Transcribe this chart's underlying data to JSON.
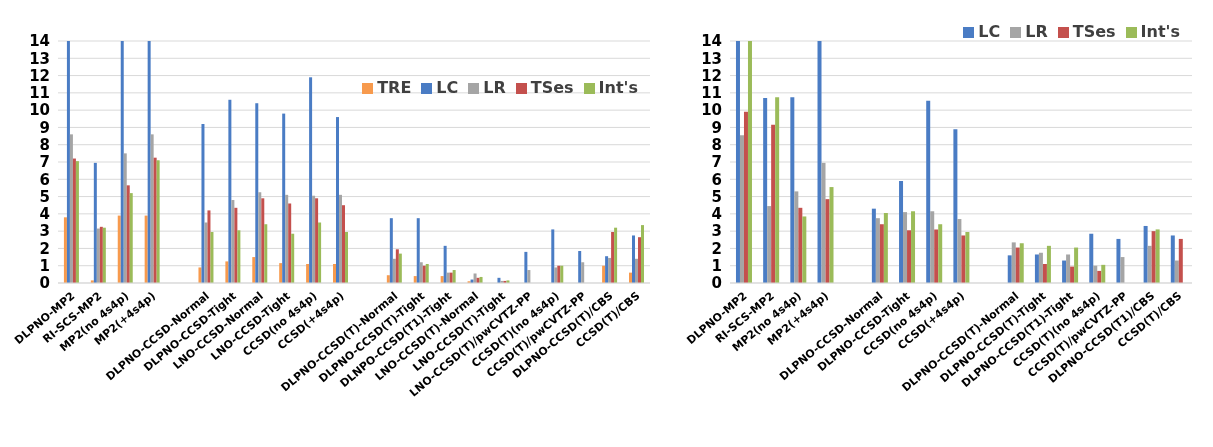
{
  "chart_data": [
    {
      "type": "bar",
      "categories": [
        "DLPNO-MP2",
        "RI-SCS-MP2",
        "MP2(no 4s4p)",
        "MP2(+4s4p)",
        null,
        "DLPNO-CCSD-Normal",
        "DLPNO-CCSD-Tight",
        "LNO-CCSD-Normal",
        "LNO-CCSD-Tight",
        "CCSD(no 4s4p)",
        "CCSD(+4s4p)",
        null,
        "DLPNO-CCSD(T)-Normal",
        "DLPNO-CCSD(T)-Tight",
        "DLNPO-CCSD(T1)-Tight",
        "LNO-CCSD(T)-Normal",
        "LNO-CCSD(T)-Tight",
        "LNO-CCSD(T)/pwCVTZ-PP",
        "CCSD(T)(no 4s4p)",
        "CCSD(T)/pwCVTZ-PP",
        "DLPNO-CCSD(T)/CBS",
        "CCSD(T)/CBS"
      ],
      "series": [
        {
          "name": "TRE",
          "color": "#f79a4d",
          "values": [
            3.8,
            0.15,
            3.9,
            3.9,
            null,
            0.9,
            1.25,
            1.5,
            1.15,
            1.1,
            1.1,
            null,
            0.45,
            0.4,
            0.4,
            0.1,
            null,
            null,
            null,
            null,
            1.0,
            0.6
          ]
        },
        {
          "name": "LC",
          "color": "#4a7cc4",
          "values": [
            14,
            6.95,
            14,
            14,
            null,
            9.2,
            10.6,
            10.4,
            9.8,
            11.9,
            9.6,
            null,
            3.75,
            3.75,
            2.15,
            0.2,
            0.3,
            1.8,
            3.1,
            1.85,
            1.55,
            2.75
          ]
        },
        {
          "name": "LR",
          "color": "#a5a5a5",
          "values": [
            8.6,
            3.15,
            7.5,
            8.6,
            null,
            3.5,
            4.8,
            5.25,
            5.1,
            5.05,
            5.1,
            null,
            1.4,
            1.2,
            0.6,
            0.55,
            0.12,
            0.75,
            0.9,
            1.2,
            1.45,
            1.4
          ]
        },
        {
          "name": "TSes",
          "color": "#c4504d",
          "values": [
            7.2,
            3.25,
            5.65,
            7.25,
            null,
            4.2,
            4.35,
            4.9,
            4.6,
            4.9,
            4.5,
            null,
            1.95,
            1.0,
            0.6,
            0.3,
            0.12,
            null,
            1.0,
            null,
            2.95,
            2.65
          ]
        },
        {
          "name": "Int's",
          "color": "#9bbb59",
          "values": [
            7.05,
            3.2,
            5.2,
            7.1,
            null,
            2.95,
            3.05,
            3.4,
            2.85,
            3.5,
            2.95,
            null,
            1.7,
            1.1,
            0.75,
            0.35,
            0.15,
            null,
            1.0,
            null,
            3.2,
            3.35
          ]
        }
      ],
      "ylim": [
        0,
        14
      ],
      "yticks": [
        0,
        1,
        2,
        3,
        4,
        5,
        6,
        7,
        8,
        9,
        10,
        11,
        12,
        13,
        14
      ],
      "grid": "y",
      "legend": "top right"
    },
    {
      "type": "bar",
      "categories": [
        "DLPNO-MP2",
        "RI-SCS-MP2",
        "MP2(no 4s4p)",
        "MP2(+4s4p)",
        null,
        "DLPNO-CCSD-Normal",
        "DLPNO-CCSD-Tight",
        "CCSD(no 4s4p)",
        "CCSD(+4s4p)",
        null,
        "DLPNO-CCSD(T)-Normal",
        "DLPNO-CCSD(T)-Tight",
        "DLPNO-CCSD(T1)-Tight",
        "CCSD(T)(no 4s4p)",
        "CCSD(T)/pwCVTZ-PP",
        "DLPNO-CCSD(T1)/CBS",
        "CCSD(T)/CBS"
      ],
      "series": [
        {
          "name": "LC",
          "color": "#4a7cc4",
          "values": [
            14,
            10.7,
            10.75,
            14,
            null,
            4.3,
            5.9,
            10.55,
            8.9,
            null,
            1.6,
            1.65,
            1.3,
            2.85,
            2.55,
            3.3,
            2.75
          ]
        },
        {
          "name": "LR",
          "color": "#a5a5a5",
          "values": [
            8.55,
            4.45,
            5.3,
            6.95,
            null,
            3.75,
            4.1,
            4.15,
            3.7,
            null,
            2.35,
            1.75,
            1.65,
            1.0,
            1.5,
            2.15,
            1.3
          ]
        },
        {
          "name": "TSes",
          "color": "#c4504d",
          "values": [
            9.9,
            9.15,
            4.35,
            4.85,
            null,
            3.4,
            3.05,
            3.1,
            2.75,
            null,
            2.05,
            1.1,
            0.95,
            0.7,
            null,
            3.0,
            2.55
          ]
        },
        {
          "name": "Int's",
          "color": "#9bbb59",
          "values": [
            14,
            10.75,
            3.85,
            5.55,
            null,
            4.05,
            4.15,
            3.4,
            2.95,
            null,
            2.3,
            2.15,
            2.05,
            1.05,
            null,
            3.1,
            null
          ]
        }
      ],
      "ylim": [
        0,
        14
      ],
      "yticks": [
        0,
        1,
        2,
        3,
        4,
        5,
        6,
        7,
        8,
        9,
        10,
        11,
        12,
        13,
        14
      ],
      "grid": "y",
      "legend": "top right"
    }
  ]
}
